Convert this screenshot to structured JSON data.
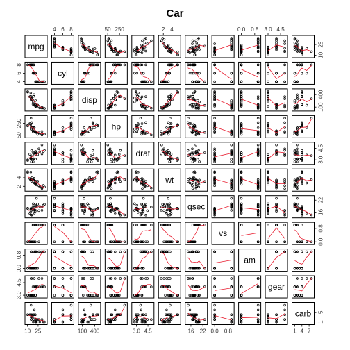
{
  "chart_data": {
    "type": "scatter",
    "subtype": "pairs",
    "title": "Car",
    "variables": [
      "mpg",
      "cyl",
      "disp",
      "hp",
      "drat",
      "wt",
      "qsec",
      "vs",
      "am",
      "gear",
      "carb"
    ],
    "ranges": {
      "mpg": [
        10.4,
        33.9
      ],
      "cyl": [
        4,
        8
      ],
      "disp": [
        71.1,
        472
      ],
      "hp": [
        52,
        335
      ],
      "drat": [
        2.76,
        4.93
      ],
      "wt": [
        1.513,
        5.424
      ],
      "qsec": [
        14.5,
        22.9
      ],
      "vs": [
        0,
        1
      ],
      "am": [
        0,
        1
      ],
      "gear": [
        3,
        5
      ],
      "carb": [
        1,
        8
      ]
    },
    "axes": {
      "top": {
        "cyl": [
          "4",
          "6",
          "8"
        ],
        "hp": [
          "50",
          "250"
        ],
        "wt": [
          "2",
          "4"
        ],
        "am": [
          "0.0",
          "0.8"
        ],
        "gear": [
          "3.0",
          "4.5"
        ]
      },
      "bottom": {
        "mpg": [
          "10",
          "25"
        ],
        "disp": [
          "100",
          "400"
        ],
        "drat": [
          "3.0",
          "4.5"
        ],
        "qsec": [
          "16",
          "22"
        ],
        "vs": [
          "0.0",
          "0.8"
        ],
        "carb": [
          "1",
          "4",
          "7"
        ]
      },
      "left": {
        "cyl": [
          "4",
          "6",
          "8"
        ],
        "hp": [
          "50",
          "250"
        ],
        "wt": [
          "2",
          "4"
        ],
        "am": [
          "0.0",
          "0.8"
        ],
        "gear": [
          "3.0",
          "4.5"
        ]
      },
      "right": {
        "mpg": [
          "10",
          "25"
        ],
        "disp": [
          "100",
          "400"
        ],
        "drat": [
          "3.0",
          "4.5"
        ],
        "qsec": [
          "16",
          "22"
        ],
        "vs": [
          "0.0",
          "0.8"
        ],
        "carb": [
          "1",
          "5"
        ]
      }
    },
    "observations": [
      [
        21.0,
        6,
        160.0,
        110,
        3.9,
        2.62,
        16.46,
        0,
        1,
        4,
        4
      ],
      [
        21.0,
        6,
        160.0,
        110,
        3.9,
        2.875,
        17.02,
        0,
        1,
        4,
        4
      ],
      [
        22.8,
        4,
        108.0,
        93,
        3.85,
        2.32,
        18.61,
        1,
        1,
        4,
        1
      ],
      [
        21.4,
        6,
        258.0,
        110,
        3.08,
        3.215,
        19.44,
        1,
        0,
        3,
        1
      ],
      [
        18.7,
        8,
        360.0,
        175,
        3.15,
        3.44,
        17.02,
        0,
        0,
        3,
        2
      ],
      [
        18.1,
        6,
        225.0,
        105,
        2.76,
        3.46,
        20.22,
        1,
        0,
        3,
        1
      ],
      [
        14.3,
        8,
        360.0,
        245,
        3.21,
        3.57,
        15.84,
        0,
        0,
        3,
        4
      ],
      [
        24.4,
        4,
        146.7,
        62,
        3.69,
        3.19,
        20.0,
        1,
        0,
        4,
        2
      ],
      [
        22.8,
        4,
        140.8,
        95,
        3.92,
        3.15,
        22.9,
        1,
        0,
        4,
        2
      ],
      [
        19.2,
        6,
        167.6,
        123,
        3.92,
        3.44,
        18.3,
        1,
        0,
        4,
        4
      ],
      [
        17.8,
        6,
        167.6,
        123,
        3.92,
        3.44,
        18.9,
        1,
        0,
        4,
        4
      ],
      [
        16.4,
        8,
        275.8,
        180,
        3.07,
        4.07,
        17.4,
        0,
        0,
        3,
        3
      ],
      [
        17.3,
        8,
        275.8,
        180,
        3.07,
        3.73,
        17.6,
        0,
        0,
        3,
        3
      ],
      [
        15.2,
        8,
        275.8,
        180,
        3.07,
        3.78,
        18.0,
        0,
        0,
        3,
        3
      ],
      [
        10.4,
        8,
        472.0,
        205,
        2.93,
        5.25,
        17.98,
        0,
        0,
        3,
        4
      ],
      [
        10.4,
        8,
        460.0,
        215,
        3.0,
        5.424,
        17.82,
        0,
        0,
        3,
        4
      ],
      [
        14.7,
        8,
        440.0,
        230,
        3.23,
        5.345,
        17.42,
        0,
        0,
        3,
        4
      ],
      [
        32.4,
        4,
        78.7,
        66,
        4.08,
        2.2,
        19.47,
        1,
        1,
        4,
        1
      ],
      [
        30.4,
        4,
        75.7,
        52,
        4.93,
        1.615,
        18.52,
        1,
        1,
        4,
        2
      ],
      [
        33.9,
        4,
        71.1,
        65,
        4.22,
        1.835,
        19.9,
        1,
        1,
        4,
        1
      ],
      [
        21.5,
        4,
        120.1,
        97,
        3.7,
        2.465,
        20.01,
        1,
        0,
        3,
        1
      ],
      [
        15.5,
        8,
        318.0,
        150,
        2.76,
        3.52,
        16.87,
        0,
        0,
        3,
        2
      ],
      [
        15.2,
        8,
        304.0,
        150,
        3.15,
        3.435,
        17.3,
        0,
        0,
        3,
        2
      ],
      [
        13.3,
        8,
        350.0,
        245,
        3.73,
        3.84,
        15.41,
        0,
        0,
        3,
        4
      ],
      [
        19.2,
        8,
        400.0,
        175,
        3.08,
        3.845,
        17.05,
        0,
        0,
        3,
        2
      ],
      [
        27.3,
        4,
        79.0,
        66,
        4.08,
        1.935,
        18.9,
        1,
        1,
        4,
        1
      ],
      [
        26.0,
        4,
        120.3,
        91,
        4.43,
        2.14,
        16.7,
        0,
        1,
        5,
        2
      ],
      [
        30.4,
        4,
        95.1,
        113,
        3.77,
        1.513,
        16.9,
        1,
        1,
        5,
        2
      ],
      [
        15.8,
        8,
        351.0,
        264,
        4.22,
        3.17,
        14.5,
        0,
        1,
        5,
        4
      ],
      [
        19.7,
        6,
        145.0,
        175,
        3.62,
        2.77,
        15.5,
        0,
        1,
        5,
        6
      ],
      [
        15.0,
        8,
        301.0,
        335,
        3.54,
        3.57,
        14.6,
        0,
        1,
        5,
        8
      ],
      [
        21.4,
        4,
        121.0,
        109,
        4.11,
        2.78,
        18.6,
        1,
        1,
        4,
        2
      ]
    ]
  }
}
